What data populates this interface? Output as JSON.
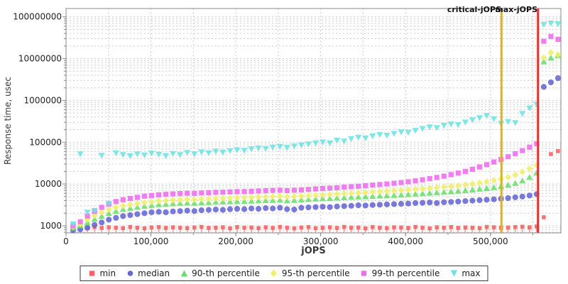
{
  "header": {
    "critical_line_label": "critical-jOPS",
    "max_line_label": "max-jOPS"
  },
  "chart_data": {
    "type": "scatter",
    "xlabel": "jOPS",
    "ylabel": "Response time, usec",
    "x_axis": {
      "min": 0,
      "max": 583000,
      "tick_values": [
        0,
        100000,
        200000,
        300000,
        400000,
        500000
      ],
      "tick_labels": [
        "0",
        "100,000",
        "200,000",
        "300,000",
        "400,000",
        "500,000"
      ],
      "minor_grid_step": 50000
    },
    "y_axis": {
      "scale": "log",
      "min": 676,
      "max": 158000000,
      "tick_values": [
        1000,
        10000,
        100000,
        1000000,
        10000000,
        100000000
      ],
      "tick_labels": [
        "1000",
        "10000",
        "100000",
        "1000000",
        "10000000",
        "100000000"
      ]
    },
    "grid": {
      "dashed": true,
      "color": "#cccccc"
    },
    "legend_position": "bottom",
    "annotations": [
      {
        "name": "critical-jOPS",
        "x": 513000,
        "color": "#e6b400"
      },
      {
        "name": "max-jOPS",
        "x": 556000,
        "color": "#e63232"
      }
    ],
    "x": [
      8400,
      16800,
      25200,
      33600,
      42000,
      50400,
      58800,
      67200,
      75600,
      84000,
      92400,
      100800,
      109200,
      117600,
      126000,
      134400,
      142800,
      151200,
      159600,
      168000,
      176400,
      184800,
      193200,
      201600,
      210000,
      218400,
      226800,
      235200,
      243600,
      252000,
      260400,
      268800,
      277200,
      285600,
      294000,
      302400,
      310800,
      319200,
      327600,
      336000,
      344400,
      352800,
      361200,
      369600,
      378000,
      386400,
      394800,
      403200,
      411600,
      420000,
      428400,
      436800,
      445200,
      453600,
      462000,
      470400,
      478800,
      487200,
      495600,
      504000,
      512400,
      520800,
      529200,
      537600,
      546000,
      554400,
      562800,
      571200,
      579600
    ],
    "series": [
      {
        "name": "min",
        "marker": "square-stem",
        "color": "#fb6060",
        "values": [
          880,
          910,
          870,
          930,
          890,
          920,
          900,
          880,
          940,
          900,
          870,
          910,
          930,
          890,
          920,
          900,
          880,
          910,
          940,
          890,
          900,
          920,
          870,
          930,
          900,
          910,
          880,
          920,
          890,
          940,
          900,
          870,
          910,
          930,
          880,
          900,
          920,
          890,
          940,
          900,
          910,
          870,
          930,
          900,
          880,
          920,
          910,
          890,
          940,
          900,
          870,
          920,
          900,
          930,
          890,
          910,
          900,
          880,
          940,
          920,
          900,
          910,
          930,
          950,
          920,
          960,
          1600,
          52000,
          61000
        ]
      },
      {
        "name": "median",
        "marker": "circle",
        "color": "#6767d4",
        "values": [
          780,
          820,
          900,
          1050,
          1200,
          1400,
          1550,
          1700,
          1800,
          1900,
          2000,
          2100,
          2150,
          2100,
          2200,
          2250,
          2300,
          2250,
          2350,
          2400,
          2450,
          2400,
          2500,
          2550,
          2500,
          2600,
          2550,
          2650,
          2600,
          2700,
          2500,
          2450,
          2700,
          2750,
          2800,
          2850,
          2800,
          2900,
          2950,
          3000,
          3100,
          3050,
          3150,
          3200,
          3250,
          3300,
          3350,
          3400,
          3500,
          3550,
          3600,
          3500,
          3650,
          3700,
          3800,
          3900,
          4000,
          4100,
          4200,
          4300,
          4450,
          4600,
          4800,
          5000,
          5300,
          5700,
          2100000,
          2700000,
          3400000
        ]
      },
      {
        "name": "90-th percentile",
        "marker": "triangle-up",
        "color": "#6ade6a",
        "values": [
          900,
          1000,
          1200,
          1450,
          1700,
          2000,
          2250,
          2500,
          2650,
          2800,
          2950,
          3100,
          3250,
          3300,
          3400,
          3500,
          3550,
          3500,
          3600,
          3650,
          3700,
          3750,
          3800,
          3850,
          3900,
          3950,
          4000,
          4050,
          4100,
          4150,
          4000,
          4100,
          4200,
          4300,
          4400,
          4500,
          4550,
          4650,
          4750,
          4850,
          4950,
          5000,
          5100,
          5200,
          5300,
          5400,
          5500,
          5650,
          5800,
          5950,
          6100,
          6250,
          6400,
          6600,
          6800,
          7000,
          7300,
          7600,
          7900,
          8300,
          8800,
          9500,
          10500,
          12000,
          14500,
          18500,
          8500000,
          10500000,
          12000000
        ]
      },
      {
        "name": "95-th percentile",
        "marker": "diamond",
        "color": "#efef68",
        "values": [
          950,
          1100,
          1400,
          1750,
          2100,
          2450,
          2750,
          3000,
          3200,
          3400,
          3600,
          3750,
          3900,
          4000,
          4100,
          4200,
          4300,
          4250,
          4350,
          4400,
          4500,
          4550,
          4600,
          4700,
          4750,
          4800,
          4900,
          4950,
          5000,
          5100,
          4950,
          5050,
          5150,
          5250,
          5400,
          5500,
          5600,
          5750,
          5900,
          6000,
          6150,
          6300,
          6450,
          6600,
          6750,
          6900,
          7100,
          7300,
          7500,
          7700,
          7950,
          8200,
          8500,
          8800,
          9200,
          9600,
          10100,
          10700,
          11400,
          12200,
          13200,
          14500,
          16500,
          19500,
          23500,
          28500,
          10500000,
          14000000,
          12500000
        ]
      },
      {
        "name": "99-th percentile",
        "marker": "square",
        "color": "#ef6cef",
        "values": [
          1000,
          1250,
          1700,
          2200,
          2750,
          3300,
          3800,
          4200,
          4500,
          4800,
          5100,
          5300,
          5500,
          5650,
          5800,
          5900,
          6000,
          5950,
          6100,
          6200,
          6300,
          6350,
          6450,
          6550,
          6600,
          6700,
          6800,
          6900,
          7000,
          7100,
          6950,
          7100,
          7250,
          7400,
          7600,
          7800,
          7950,
          8150,
          8400,
          8600,
          8850,
          9100,
          9400,
          9700,
          10000,
          10400,
          10800,
          11300,
          11900,
          12600,
          13400,
          14300,
          15400,
          16700,
          18200,
          20000,
          22500,
          25500,
          29000,
          33500,
          38500,
          45000,
          53000,
          63000,
          76000,
          92000,
          26000000,
          34000000,
          29000000
        ]
      },
      {
        "name": "max",
        "marker": "triangle-down",
        "color": "#6ce2e2",
        "values": [
          1100,
          52000,
          2100,
          2300,
          48000,
          3400,
          55000,
          50000,
          47000,
          52000,
          49000,
          54000,
          51000,
          47000,
          53000,
          50000,
          56000,
          52000,
          58000,
          55000,
          60000,
          57000,
          62000,
          65000,
          63000,
          68000,
          72000,
          70000,
          75000,
          78000,
          74000,
          80000,
          85000,
          90000,
          95000,
          100000,
          95000,
          110000,
          105000,
          120000,
          130000,
          125000,
          140000,
          150000,
          145000,
          160000,
          175000,
          170000,
          190000,
          210000,
          230000,
          220000,
          250000,
          270000,
          260000,
          300000,
          340000,
          380000,
          430000,
          360000,
          280000,
          310000,
          290000,
          480000,
          650000,
          800000,
          65000000,
          70000000,
          67000000
        ]
      }
    ]
  }
}
